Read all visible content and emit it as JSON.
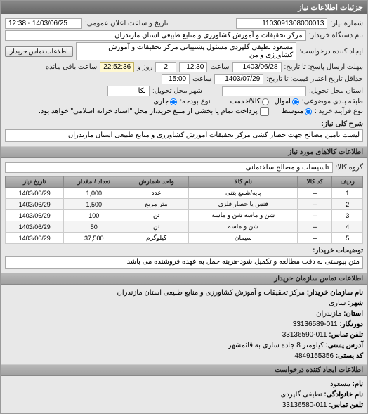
{
  "panel_title": "جزئیات اطلاعات نیاز",
  "header": {
    "number_label": "شماره نیاز:",
    "number": "1103091308000013",
    "announce_label": "تاریخ و ساعت اعلان عمومی:",
    "announce": "1403/06/25 - 12:38"
  },
  "buyer": {
    "name_label": "نام دستگاه خریدار:",
    "name": "مرکز تحقیقات و آموزش کشاورزی و منابع طبیعی استان مازندران",
    "creator_label": "ایجاد کننده درخواست:",
    "creator": "مسعود نظیفی گلپردی مسئول پشتیبانی مرکز تحقیقات و آموزش کشاورزی و من",
    "contact_btn": "اطلاعات تماس خریدار"
  },
  "deadlines": {
    "response_label": "مهلت ارسال پاسخ: تا تاریخ:",
    "response_date": "1403/06/28",
    "response_time_label": "ساعت",
    "response_time": "12:30",
    "days_label": "روز و",
    "days": "2",
    "countdown": "22:52:36",
    "remaining_label": "ساعت باقی مانده",
    "validity_label": "حداقل تاریخ اعتبار قیمت: تا تاریخ:",
    "validity_date": "1403/07/29",
    "validity_time_label": "ساعت",
    "validity_time": "15:00"
  },
  "location": {
    "province_label": "استان محل تحویل:",
    "city_label": "شهر محل تحویل:",
    "nka": "نکا"
  },
  "budget": {
    "row_label": "طبقه بندی موضوعی:",
    "asset": "اموال",
    "cash": "کالا/خدمت",
    "budget_label": "نوع بودجه:",
    "current": "جاری",
    "type_label": "نوع فرآیند خرید :",
    "medium": "متوسط",
    "note_checkbox": "پرداخت تمام یا بخشی از مبلغ خرید،از محل \"اسناد خزانه اسلامی\" خواهد بود."
  },
  "desc": {
    "label": "شرح کلی نیاز:",
    "text": "لیست تامین مصالح جهت حصار کشی مرکز تحقیقات آموزش کشاورزی و منابع طبیعی استان مازندران"
  },
  "goods_header": "اطلاعات کالاهای مورد نیاز",
  "group": {
    "label": "گروه کالا:",
    "value": "تاسیسات و مصالح ساختمانی"
  },
  "table": {
    "cols": [
      "ردیف",
      "کد کالا",
      "نام کالا",
      "واحد شمارش",
      "تعداد / مقدار",
      "تاریخ نیاز"
    ],
    "rows": [
      [
        "1",
        "--",
        "پایه/شمع بتنی",
        "عدد",
        "1,000",
        "1403/06/29"
      ],
      [
        "2",
        "--",
        "فنس یا حصار فلزی",
        "متر مربع",
        "1,500",
        "1403/06/29"
      ],
      [
        "3",
        "--",
        "شن و ماسه شن و ماسه",
        "تن",
        "100",
        "1403/06/29"
      ],
      [
        "4",
        "--",
        "شن و ماسه",
        "تن",
        "50",
        "1403/06/29"
      ],
      [
        "5",
        "--",
        "سیمان",
        "کیلوگرم",
        "37,500",
        "1403/06/29"
      ]
    ]
  },
  "buyer_note": {
    "label": "توضیحات خریدار:",
    "text": "متن پیوستی به دقت مطالعه و تکمیل شود-هزینه حمل به عهده فروشنده می باشد"
  },
  "contact_header": "اطلاعات تماس سازمان خریدار",
  "contact": {
    "org_label": "نام سازمان خریدار:",
    "org": "مرکز تحقیقات و آموزش کشاورزی و منابع طبیعی استان مازندران",
    "city_label": "شهر:",
    "city": "ساری",
    "province_label": "استان:",
    "province": "مازندران",
    "phone_label": "دورنگار:",
    "phone": "011-33136589",
    "tel_label": "تلفن تماس:",
    "tel": "011-33136590",
    "addr_label": "آدرس پستی:",
    "addr": "کیلومتر 8 جاده ساری به قائمشهر",
    "post_label": "کد پستی:",
    "post": "4849155356"
  },
  "creator_header": "اطلاعات ایجاد کننده درخواست",
  "creator_info": {
    "name_label": "نام:",
    "name": "مسعود",
    "lname_label": "نام خانوادگی:",
    "lname": "نظیفی گلپردی",
    "tel_label": "تلفن تماس:",
    "tel": "011-33136580"
  }
}
